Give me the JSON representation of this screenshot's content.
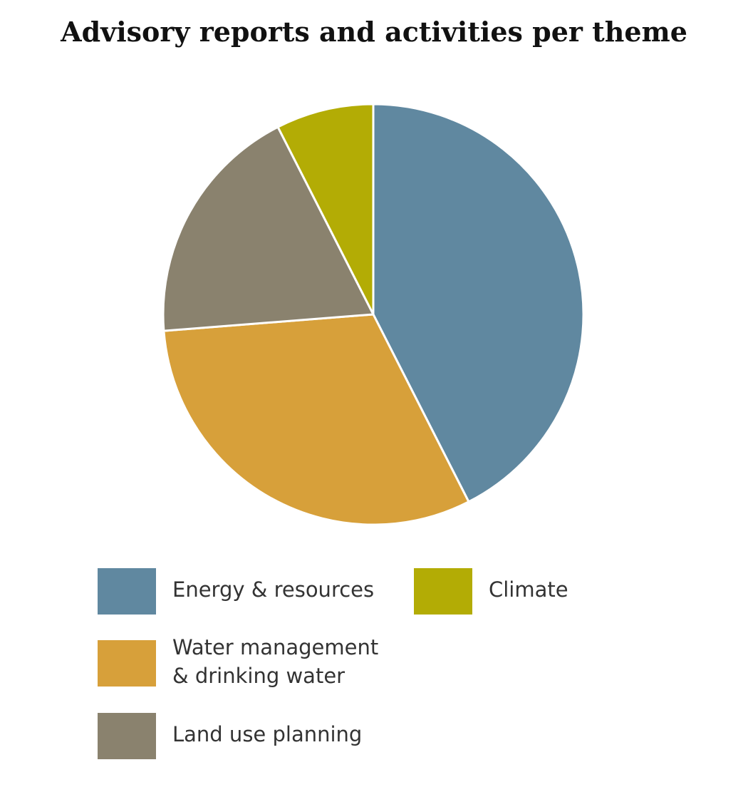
{
  "chart_data": {
    "type": "pie",
    "title": "Advisory reports and activities per theme",
    "start_angle_deg": 0,
    "direction": "clockwise",
    "slices": [
      {
        "label": "Energy & resources",
        "value": 34,
        "color": "#6088a0",
        "radius_rel": 1.0
      },
      {
        "label": "Water management\n& drinking water",
        "value": 25,
        "color": "#d7a03a",
        "radius_rel": 1.0
      },
      {
        "label": "Land use planning",
        "value": 15,
        "color": "#8a826e",
        "radius_rel": 1.0
      },
      {
        "label": "Climate",
        "value": 6,
        "color": "#b3ac05",
        "radius_rel": 1.0
      }
    ],
    "legend": [
      {
        "label": "Energy & resources",
        "color": "#6088a0"
      },
      {
        "label": "Water management\n& drinking water",
        "color": "#d7a03a"
      },
      {
        "label": "Land use planning",
        "color": "#8a826e"
      },
      {
        "label": "Climate",
        "color": "#b3ac05"
      }
    ]
  }
}
